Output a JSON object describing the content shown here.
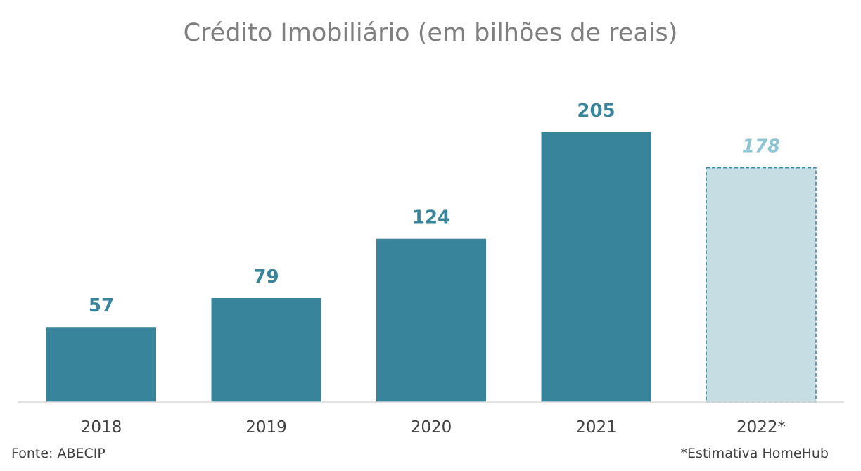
{
  "chart_data": {
    "type": "bar",
    "title": "Crédito Imobiliário (em bilhões de reais)",
    "categories": [
      "2018",
      "2019",
      "2020",
      "2021",
      "2022*"
    ],
    "values": [
      57,
      79,
      124,
      205,
      178
    ],
    "estimated": [
      false,
      false,
      false,
      false,
      true
    ],
    "xlabel": "",
    "ylabel": "",
    "ylim": [
      0,
      205
    ],
    "grid": false,
    "legend": "none",
    "colors": {
      "bar": "#38849a",
      "estimate_fill": "#c6dde3",
      "estimate_stroke": "#38849a",
      "label": "#38849a",
      "estimate_label": "#8ec4d4",
      "axis": "#d9d9d9"
    }
  },
  "footer": {
    "source": "Fonte: ABECIP",
    "note": "*Estimativa HomeHub"
  }
}
